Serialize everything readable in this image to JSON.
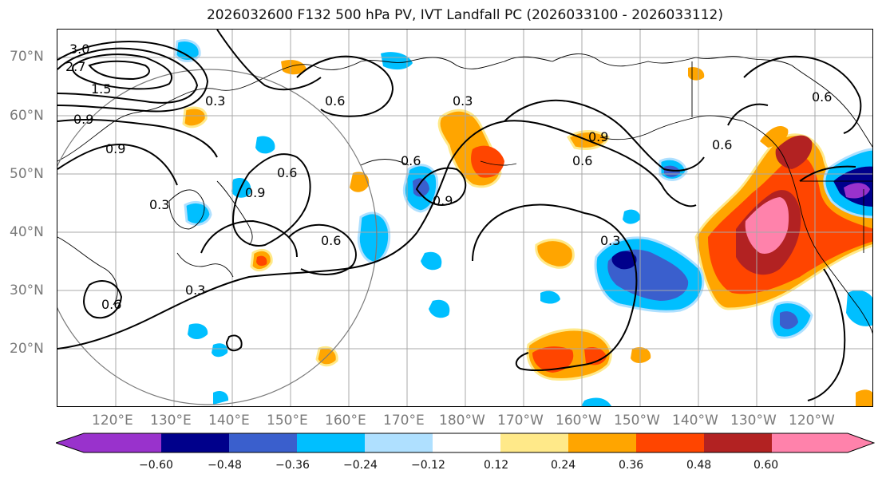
{
  "title": "2026032600 F132 500 hPa PV, IVT Landfall PC (2026033100 - 2026033112)",
  "lat_labels": [
    "70°N",
    "60°N",
    "50°N",
    "40°N",
    "30°N",
    "20°N"
  ],
  "lon_labels": [
    "120°E",
    "130°E",
    "140°E",
    "150°E",
    "160°E",
    "170°E",
    "180°W",
    "170°W",
    "160°W",
    "150°W",
    "140°W",
    "130°W",
    "120°W"
  ],
  "contour_labels": [
    "3.0",
    "2.7",
    "1.5",
    "0.9",
    "0.9",
    "0.3",
    "0.3",
    "0.6",
    "0.6",
    "0.9",
    "0.6",
    "0.3",
    "0.6",
    "0.9",
    "0.9",
    "0.6",
    "0.6",
    "0.3",
    "0.6",
    "0.6",
    "0.3"
  ],
  "colorbar": {
    "ticks": [
      "−0.60",
      "−0.48",
      "−0.36",
      "−0.24",
      "−0.12",
      "0.12",
      "0.24",
      "0.36",
      "0.48",
      "0.60"
    ],
    "colors": [
      "#9932cc",
      "#00008b",
      "#3a5fcd",
      "#00bfff",
      "#afe0ff",
      "#ffffff",
      "#ffe989",
      "#ffa500",
      "#ff4500",
      "#b22222",
      "#ff82ab",
      "#ff82ab"
    ]
  },
  "colors": {
    "purple": "#9932cc",
    "navy": "#00008b",
    "royalblue": "#3a5fcd",
    "deepskyblue": "#00bfff",
    "lightblue": "#afe0ff",
    "lightyellow": "#ffe989",
    "orange": "#ffa500",
    "orangered": "#ff4500",
    "firebrick": "#b22222",
    "pink": "#ff82ab"
  }
}
